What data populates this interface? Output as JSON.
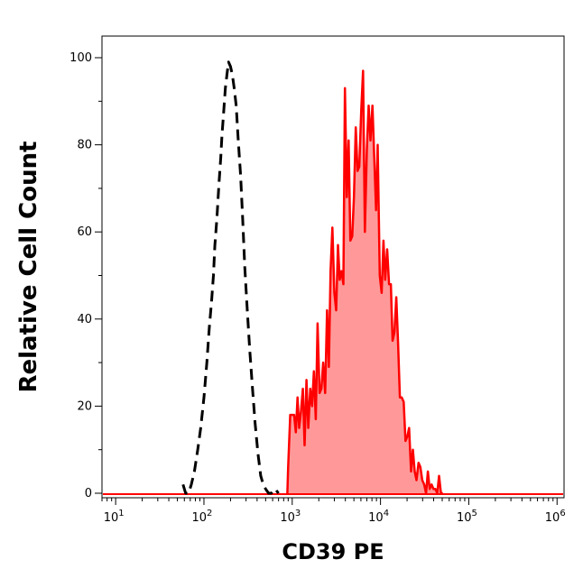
{
  "chart_data": {
    "type": "area",
    "title": "",
    "xlabel": "CD39 PE",
    "ylabel": "Relative Cell Count",
    "x_scale": "log",
    "xlim": [
      7,
      1200000
    ],
    "ylim": [
      0,
      105
    ],
    "y_ticks": [
      0,
      20,
      40,
      60,
      80,
      100
    ],
    "x_tick_labels": [
      {
        "base": "10",
        "exp": "1",
        "value": 10
      },
      {
        "base": "10",
        "exp": "2",
        "value": 100
      },
      {
        "base": "10",
        "exp": "3",
        "value": 1000
      },
      {
        "base": "10",
        "exp": "4",
        "value": 10000
      },
      {
        "base": "10",
        "exp": "5",
        "value": 100000
      },
      {
        "base": "10",
        "exp": "6",
        "value": 1000000
      }
    ],
    "grid": false,
    "legend": "none",
    "series": [
      {
        "style": "dashed-line",
        "color": "#000000",
        "x": [
          58,
          62,
          67,
          72,
          78,
          85,
          92,
          100,
          108,
          115,
          122,
          128,
          133,
          140,
          148,
          155,
          160,
          168,
          175,
          182,
          190,
          200,
          210,
          220,
          232,
          245,
          260,
          275,
          290,
          310,
          330,
          355,
          380,
          410,
          440,
          470,
          500,
          540,
          580,
          640,
          700
        ],
        "y": [
          2,
          0,
          0,
          2,
          5,
          10,
          15,
          22,
          30,
          38,
          44,
          50,
          57,
          63,
          71,
          77,
          82,
          88,
          93,
          96,
          99,
          98,
          96,
          93,
          89,
          81,
          73,
          63,
          52,
          42,
          33,
          24,
          16,
          9,
          4,
          2,
          1,
          0,
          0,
          1,
          0
        ]
      },
      {
        "style": "filled-area",
        "color": "#ff0000",
        "fill": "#ff9999",
        "x": [
          880,
          900,
          950,
          1000,
          1050,
          1100,
          1150,
          1200,
          1260,
          1320,
          1380,
          1450,
          1520,
          1600,
          1680,
          1760,
          1850,
          1940,
          2040,
          2140,
          2240,
          2360,
          2480,
          2600,
          2720,
          2850,
          3000,
          3150,
          3300,
          3450,
          3620,
          3800,
          3950,
          4150,
          4350,
          4550,
          4780,
          5000,
          5250,
          5500,
          5750,
          6050,
          6350,
          6650,
          7000,
          7350,
          7700,
          8100,
          8500,
          8900,
          9300,
          9800,
          10300,
          10800,
          11300,
          11900,
          12500,
          13100,
          13700,
          14400,
          15100,
          15800,
          16600,
          17400,
          18300,
          19200,
          20100,
          21100,
          22200,
          23300,
          24400,
          25600,
          27000,
          28300,
          29700,
          31200,
          32800,
          34400,
          36100,
          37900,
          39800,
          41800,
          43900,
          46100,
          48400,
          50800
        ],
        "y": [
          0,
          6,
          18,
          18,
          18,
          14,
          22,
          15,
          19,
          24,
          11,
          26,
          15,
          24,
          20,
          28,
          17,
          39,
          23,
          24,
          30,
          23,
          42,
          29,
          51,
          61,
          46,
          42,
          57,
          49,
          51,
          48,
          93,
          68,
          81,
          58,
          59,
          68,
          84,
          74,
          75,
          88,
          97,
          60,
          79,
          89,
          81,
          89,
          77,
          65,
          80,
          50,
          46,
          58,
          49,
          56,
          48,
          48,
          35,
          37,
          45,
          35,
          22,
          22,
          21,
          12,
          13,
          15,
          5,
          10,
          5,
          3,
          7,
          6,
          3,
          2,
          0,
          5,
          1,
          2,
          1,
          1,
          0,
          4,
          0,
          0
        ]
      }
    ]
  }
}
